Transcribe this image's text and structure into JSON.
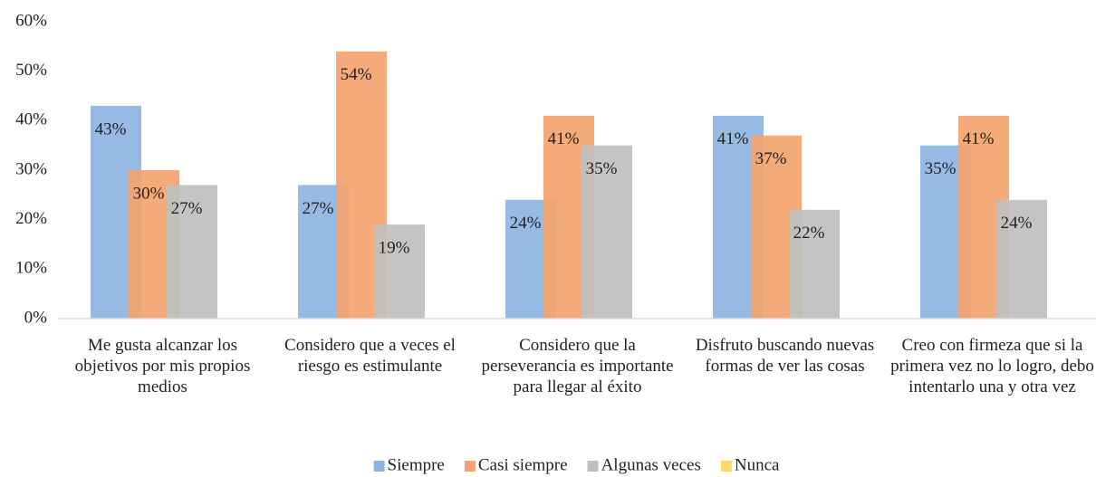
{
  "chart_data": {
    "type": "bar",
    "categories": [
      "Me gusta alcanzar los objetivos por mis propios medios",
      "Considero que a veces el riesgo es estimulante",
      "Considero que la perseverancia es importante para llegar al éxito",
      "Disfruto buscando nuevas formas de ver las cosas",
      "Creo con firmeza que si la primera vez no lo logro, debo intentarlo una y otra vez"
    ],
    "series": [
      {
        "name": "Siempre",
        "color": "#8db4e2",
        "values": [
          43,
          27,
          24,
          41,
          35
        ],
        "value_labels": [
          "43%",
          "27%",
          "24%",
          "41%",
          "35%"
        ]
      },
      {
        "name": "Casi siempre",
        "color": "#f4a46e",
        "values": [
          30,
          54,
          41,
          37,
          41
        ],
        "value_labels": [
          "30%",
          "54%",
          "41%",
          "37%",
          "41%"
        ]
      },
      {
        "name": "Algunas veces",
        "color": "#bfbfbf",
        "values": [
          27,
          19,
          35,
          22,
          24
        ],
        "value_labels": [
          "27%",
          "19%",
          "35%",
          "22%",
          "24%"
        ]
      },
      {
        "name": "Nunca",
        "color": "#ffd966",
        "values": [
          0,
          0,
          0,
          0,
          0
        ]
      }
    ],
    "ylim": [
      0,
      60
    ],
    "yticks": [
      {
        "value": 0,
        "label": "0%"
      },
      {
        "value": 10,
        "label": "10%"
      },
      {
        "value": 20,
        "label": "20%"
      },
      {
        "value": 30,
        "label": "30%"
      },
      {
        "value": 40,
        "label": "40%"
      },
      {
        "value": 50,
        "label": "50%"
      },
      {
        "value": 60,
        "label": "60%"
      }
    ],
    "grid": false,
    "legend": "bottom"
  }
}
